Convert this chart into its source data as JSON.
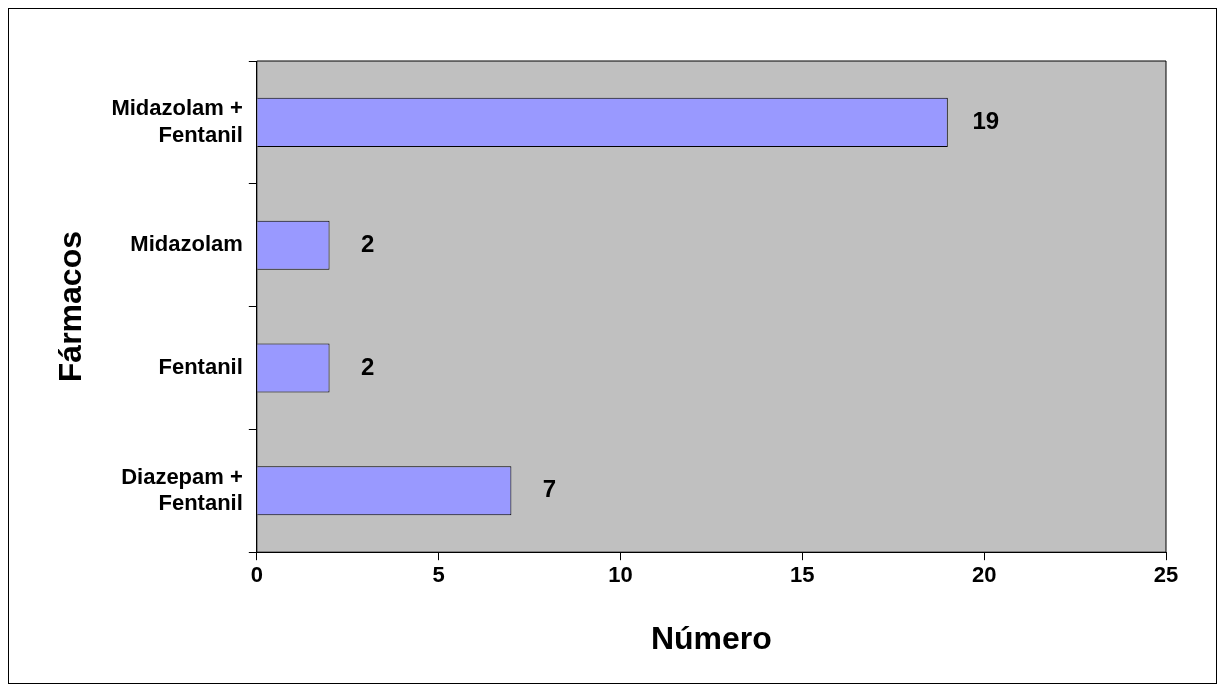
{
  "chart_data": {
    "type": "bar",
    "orientation": "horizontal",
    "xlabel": "Número",
    "ylabel": "Fármacos",
    "categories": [
      "Midazolam + Fentanil",
      "Midazolam",
      "Fentanil",
      "Diazepam + Fentanil"
    ],
    "values": [
      19,
      2,
      2,
      7
    ],
    "color": "#9999ff",
    "xlim": [
      0,
      25
    ],
    "xticks": [
      0,
      5,
      10,
      15,
      20,
      25
    ],
    "grid": false,
    "legend": false,
    "data_labels": true
  }
}
